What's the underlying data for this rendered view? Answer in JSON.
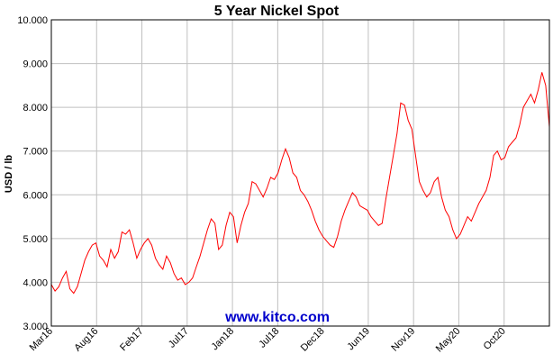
{
  "chart_data": {
    "type": "line",
    "title": "5 Year Nickel Spot",
    "ylabel": "USD / lb",
    "xlabel": "",
    "ylim": [
      3.0,
      10.0
    ],
    "yticks": [
      "3.000",
      "4.000",
      "5.000",
      "6.000",
      "7.000",
      "8.000",
      "9.000",
      "10.000"
    ],
    "xticks": [
      "Mar16",
      "Aug16",
      "Feb17",
      "Jul17",
      "Jan18",
      "Jul18",
      "Dec18",
      "Jun19",
      "Nov19",
      "May20",
      "Oct20"
    ],
    "grid": true,
    "watermark": "www.kitco.com",
    "colors": {
      "line": "#ff0000",
      "grid": "#c0c0c0",
      "watermark": "#0000cc"
    },
    "series": [
      {
        "values": [
          3.95,
          3.8,
          3.9,
          4.1,
          4.25,
          3.85,
          3.75,
          3.9,
          4.2,
          4.5,
          4.7,
          4.85,
          4.9,
          4.6,
          4.5,
          4.35,
          4.75,
          4.55,
          4.7,
          5.15,
          5.1,
          5.2,
          4.9,
          4.55,
          4.75,
          4.9,
          5.0,
          4.85,
          4.55,
          4.4,
          4.3,
          4.6,
          4.45,
          4.2,
          4.05,
          4.1,
          3.95,
          4.0,
          4.1,
          4.35,
          4.6,
          4.9,
          5.2,
          5.45,
          5.35,
          4.75,
          4.85,
          5.3,
          5.6,
          5.5,
          4.9,
          5.3,
          5.6,
          5.8,
          6.3,
          6.25,
          6.1,
          5.95,
          6.15,
          6.4,
          6.35,
          6.5,
          6.8,
          7.05,
          6.85,
          6.5,
          6.4,
          6.1,
          6.0,
          5.85,
          5.65,
          5.4,
          5.2,
          5.05,
          4.95,
          4.85,
          4.8,
          5.05,
          5.4,
          5.65,
          5.85,
          6.05,
          5.95,
          5.75,
          5.7,
          5.65,
          5.5,
          5.4,
          5.3,
          5.35,
          5.9,
          6.4,
          6.9,
          7.4,
          8.1,
          8.05,
          7.7,
          7.5,
          6.9,
          6.3,
          6.1,
          5.95,
          6.05,
          6.3,
          6.4,
          5.95,
          5.65,
          5.5,
          5.2,
          5.0,
          5.1,
          5.3,
          5.5,
          5.4,
          5.6,
          5.8,
          5.95,
          6.1,
          6.4,
          6.9,
          7.0,
          6.8,
          6.85,
          7.1,
          7.2,
          7.3,
          7.6,
          8.0,
          8.15,
          8.3,
          8.1,
          8.4,
          8.8,
          8.5,
          7.55
        ]
      }
    ]
  }
}
